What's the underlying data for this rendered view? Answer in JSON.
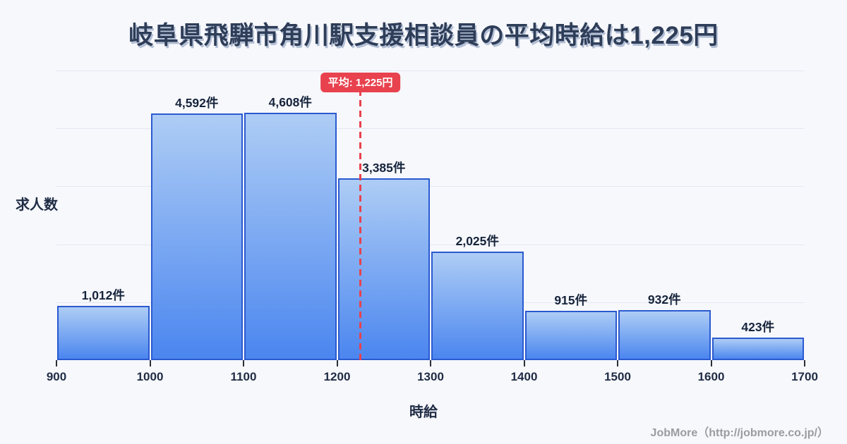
{
  "chart_data": {
    "type": "bar",
    "subtype": "histogram",
    "title": "岐阜県飛騨市角川駅支援相談員の平均時給は1,225円",
    "xlabel": "時給",
    "ylabel": "求人数",
    "bin_edges": [
      900,
      1000,
      1100,
      1200,
      1300,
      1400,
      1500,
      1600,
      1700
    ],
    "x_tick_labels": [
      "900",
      "1000",
      "1100",
      "1200",
      "1300",
      "1400",
      "1500",
      "1600",
      "1700"
    ],
    "values": [
      1012,
      4592,
      4608,
      3385,
      2025,
      915,
      932,
      423
    ],
    "bar_labels": [
      "1,012件",
      "4,592件",
      "4,608件",
      "3,385件",
      "2,025件",
      "915件",
      "932件",
      "423件"
    ],
    "ylim": [
      0,
      5400
    ],
    "grid": "horizontal-light",
    "legend": "none",
    "average": {
      "value": 1225,
      "label": "平均: 1,225円"
    },
    "colors": {
      "background": "#f7f8fc",
      "bar_fill_top": "#aecdf5",
      "bar_fill_bottom": "#4b86ef",
      "bar_border": "#2b5ad0",
      "average_accent": "#e8424e",
      "title_text": "#2e3d58",
      "axis_text": "#1f2c45",
      "gridline": "#e3e8f1",
      "footer_text": "#9b9ca0"
    }
  },
  "footer": {
    "credit": "JobMore（http://jobmore.co.jp/）"
  }
}
